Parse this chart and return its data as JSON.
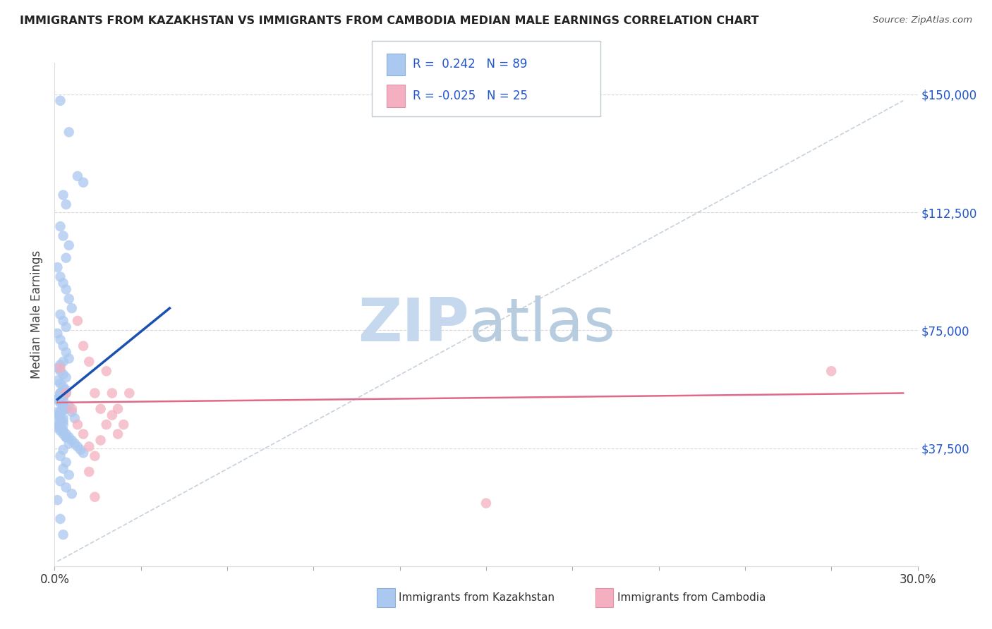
{
  "title": "IMMIGRANTS FROM KAZAKHSTAN VS IMMIGRANTS FROM CAMBODIA MEDIAN MALE EARNINGS CORRELATION CHART",
  "source": "Source: ZipAtlas.com",
  "ylabel": "Median Male Earnings",
  "xmin": 0.0,
  "xmax": 0.3,
  "ymin": 0,
  "ymax": 160000,
  "ytick_vals": [
    37500,
    75000,
    112500,
    150000
  ],
  "ytick_labels": [
    "$37,500",
    "$75,000",
    "$112,500",
    "$150,000"
  ],
  "xtick_vals": [
    0.0,
    0.03,
    0.06,
    0.09,
    0.12,
    0.15,
    0.18,
    0.21,
    0.24,
    0.27,
    0.3
  ],
  "legend_blue_R": " 0.242",
  "legend_blue_N": "89",
  "legend_pink_R": "-0.025",
  "legend_pink_N": "25",
  "blue_color": "#aac8f0",
  "pink_color": "#f4b0c0",
  "blue_line_color": "#1a50b0",
  "pink_line_color": "#e06888",
  "ref_line_color": "#c0ccd8",
  "legend_text_color": "#2255cc",
  "watermark_zip_color": "#c8ddf0",
  "watermark_atlas_color": "#b0c8e0",
  "background_color": "#ffffff",
  "blue_x": [
    0.002,
    0.005,
    0.008,
    0.01,
    0.003,
    0.004,
    0.002,
    0.003,
    0.005,
    0.004,
    0.001,
    0.002,
    0.003,
    0.004,
    0.005,
    0.006,
    0.002,
    0.003,
    0.004,
    0.001,
    0.002,
    0.003,
    0.004,
    0.005,
    0.003,
    0.002,
    0.001,
    0.002,
    0.003,
    0.004,
    0.001,
    0.002,
    0.003,
    0.004,
    0.002,
    0.003,
    0.001,
    0.002,
    0.003,
    0.004,
    0.001,
    0.002,
    0.003,
    0.002,
    0.003,
    0.001,
    0.002,
    0.003,
    0.004,
    0.002,
    0.003,
    0.001,
    0.002,
    0.003,
    0.004,
    0.002,
    0.001,
    0.002,
    0.003,
    0.001,
    0.002,
    0.003,
    0.004,
    0.005,
    0.006,
    0.007,
    0.008,
    0.009,
    0.01,
    0.004,
    0.003,
    0.005,
    0.006,
    0.007,
    0.002,
    0.003,
    0.004,
    0.005,
    0.003,
    0.002,
    0.004,
    0.003,
    0.005,
    0.002,
    0.004,
    0.006,
    0.001,
    0.002,
    0.003
  ],
  "blue_y": [
    148000,
    138000,
    124000,
    122000,
    118000,
    115000,
    108000,
    105000,
    102000,
    98000,
    95000,
    92000,
    90000,
    88000,
    85000,
    82000,
    80000,
    78000,
    76000,
    74000,
    72000,
    70000,
    68000,
    66000,
    65000,
    64000,
    63000,
    62000,
    61000,
    60000,
    59000,
    58000,
    57000,
    56000,
    55000,
    54000,
    53000,
    52000,
    51000,
    50000,
    49000,
    48000,
    47000,
    46000,
    45000,
    44000,
    43000,
    42000,
    41000,
    55000,
    54000,
    53000,
    52000,
    51000,
    50000,
    49000,
    48000,
    47000,
    46000,
    45000,
    44000,
    43000,
    42000,
    41000,
    40000,
    39000,
    38000,
    37000,
    36000,
    55000,
    53000,
    51000,
    49000,
    47000,
    45000,
    43000,
    41000,
    39000,
    37000,
    35000,
    33000,
    31000,
    29000,
    27000,
    25000,
    23000,
    21000,
    15000,
    10000
  ],
  "pink_x": [
    0.002,
    0.004,
    0.006,
    0.008,
    0.01,
    0.012,
    0.014,
    0.016,
    0.018,
    0.02,
    0.022,
    0.024,
    0.026,
    0.018,
    0.02,
    0.022,
    0.008,
    0.01,
    0.012,
    0.014,
    0.012,
    0.014,
    0.016,
    0.27,
    0.15
  ],
  "pink_y": [
    63000,
    55000,
    50000,
    78000,
    70000,
    65000,
    55000,
    50000,
    62000,
    55000,
    50000,
    45000,
    55000,
    45000,
    48000,
    42000,
    45000,
    42000,
    38000,
    35000,
    30000,
    22000,
    40000,
    62000,
    20000
  ],
  "blue_line_x": [
    0.001,
    0.04
  ],
  "blue_line_y": [
    53000,
    82000
  ],
  "pink_line_x": [
    0.001,
    0.295
  ],
  "pink_line_y": [
    52000,
    55000
  ],
  "ref_line_x": [
    0.001,
    0.295
  ],
  "ref_line_y": [
    1500,
    148000
  ]
}
